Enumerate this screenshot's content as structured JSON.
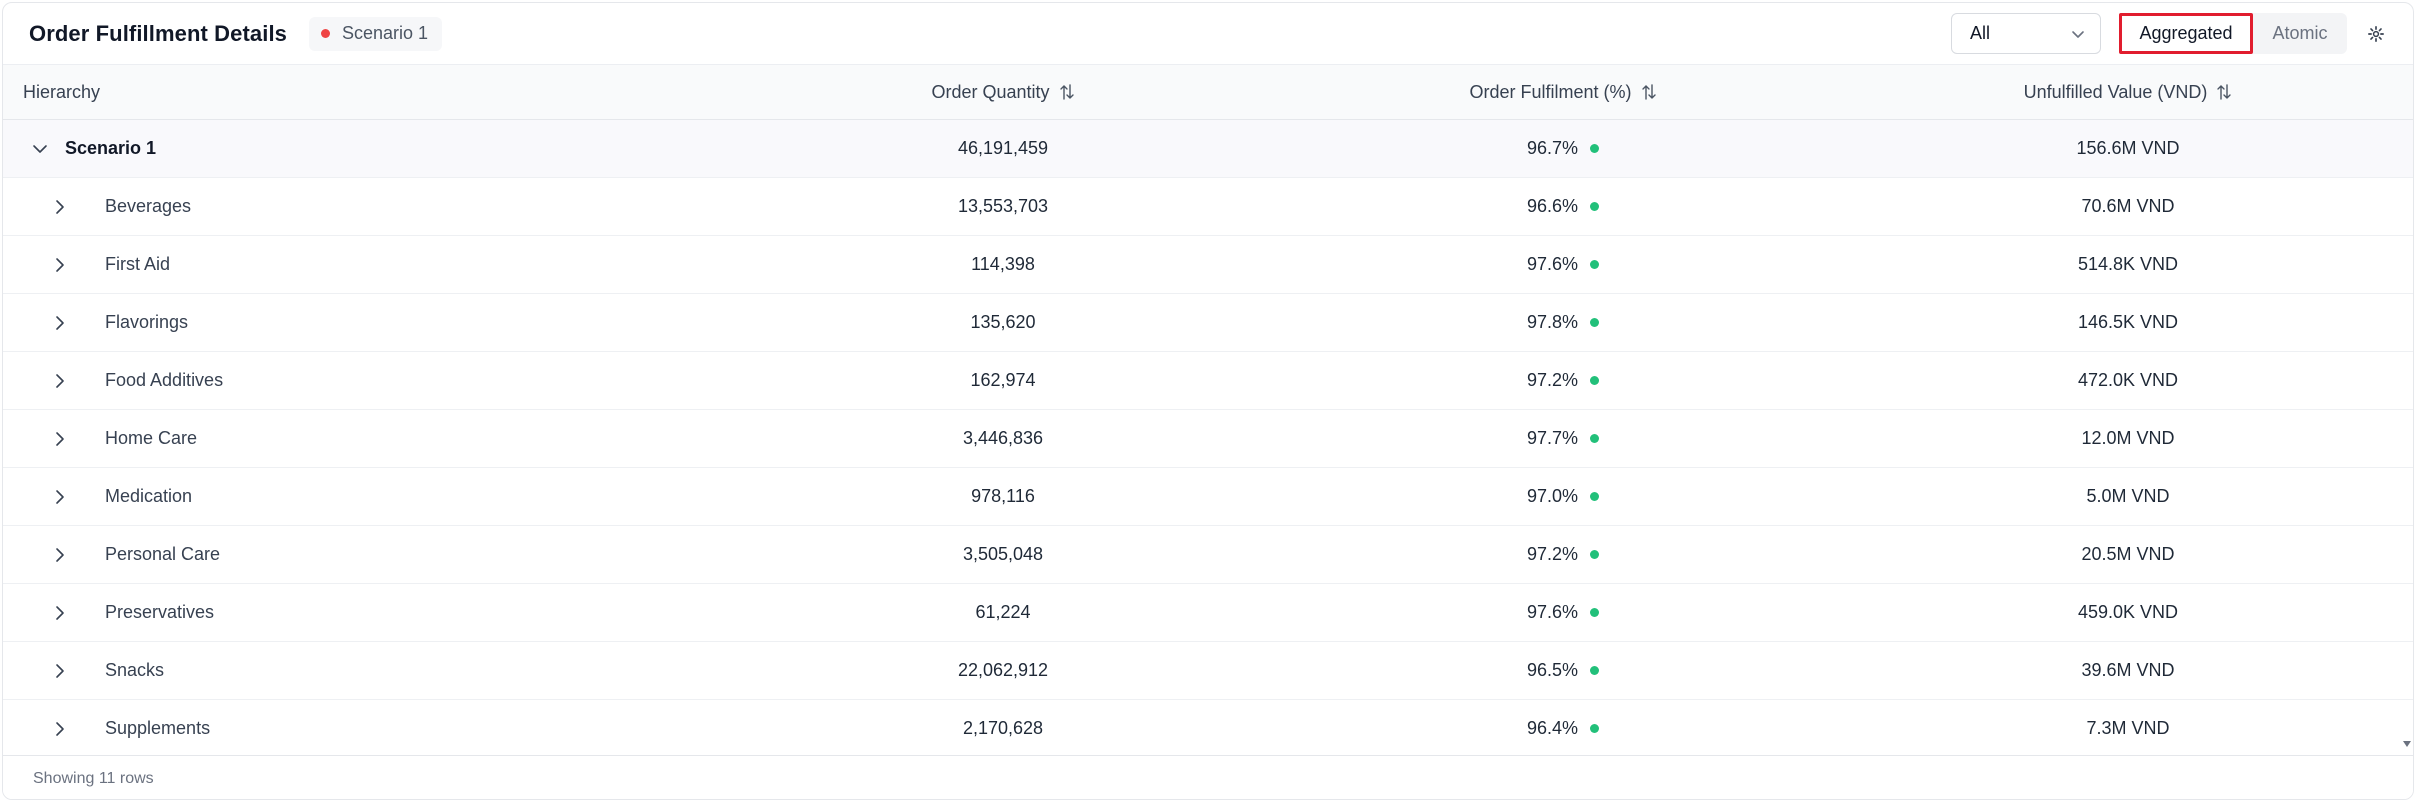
{
  "header": {
    "title": "Order Fulfillment Details",
    "scenario_badge": "Scenario 1",
    "filter_select": {
      "value": "All"
    },
    "view_toggle": {
      "aggregated_label": "Aggregated",
      "atomic_label": "Atomic",
      "active": "Aggregated"
    }
  },
  "table": {
    "columns": {
      "hierarchy": "Hierarchy",
      "order_quantity": "Order Quantity",
      "order_fulfilment": "Order Fulfilment (%)",
      "unfulfilled_value": "Unfulfilled Value (VND)"
    },
    "parent": {
      "label": "Scenario 1",
      "quantity": "46,191,459",
      "fulfilment": "96.7%",
      "unfulfilled": "156.6M VND"
    },
    "rows": [
      {
        "label": "Beverages",
        "quantity": "13,553,703",
        "fulfilment": "96.6%",
        "unfulfilled": "70.6M VND"
      },
      {
        "label": "First Aid",
        "quantity": "114,398",
        "fulfilment": "97.6%",
        "unfulfilled": "514.8K VND"
      },
      {
        "label": "Flavorings",
        "quantity": "135,620",
        "fulfilment": "97.8%",
        "unfulfilled": "146.5K VND"
      },
      {
        "label": "Food Additives",
        "quantity": "162,974",
        "fulfilment": "97.2%",
        "unfulfilled": "472.0K VND"
      },
      {
        "label": "Home Care",
        "quantity": "3,446,836",
        "fulfilment": "97.7%",
        "unfulfilled": "12.0M VND"
      },
      {
        "label": "Medication",
        "quantity": "978,116",
        "fulfilment": "97.0%",
        "unfulfilled": "5.0M VND"
      },
      {
        "label": "Personal Care",
        "quantity": "3,505,048",
        "fulfilment": "97.2%",
        "unfulfilled": "20.5M VND"
      },
      {
        "label": "Preservatives",
        "quantity": "61,224",
        "fulfilment": "97.6%",
        "unfulfilled": "459.0K VND"
      },
      {
        "label": "Snacks",
        "quantity": "22,062,912",
        "fulfilment": "96.5%",
        "unfulfilled": "39.6M VND"
      },
      {
        "label": "Supplements",
        "quantity": "2,170,628",
        "fulfilment": "96.4%",
        "unfulfilled": "7.3M VND"
      }
    ]
  },
  "footer": {
    "row_count_text": "Showing 11 rows"
  },
  "colors": {
    "status_good": "#22c07a",
    "scenario_dot": "#ef4444",
    "active_outline": "#e11d2e"
  },
  "icons": {
    "expand": "chevron-right-icon",
    "collapse": "chevron-down-icon",
    "sort": "sort-icon",
    "settings": "gear-icon"
  }
}
